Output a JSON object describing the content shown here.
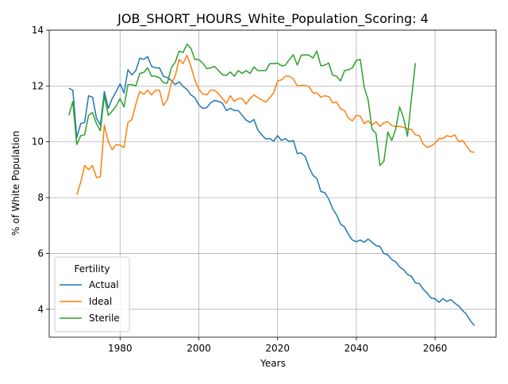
{
  "chart_data": {
    "type": "line",
    "title": "JOB_SHORT_HOURS_White_Population_Scoring: 4",
    "xlabel": "Years",
    "ylabel": "% of White Population",
    "xlim": [
      1962,
      2075.5
    ],
    "ylim": [
      3.0,
      14.0
    ],
    "xticks": [
      1980,
      2000,
      2020,
      2040,
      2060
    ],
    "yticks": [
      4,
      6,
      8,
      10,
      12,
      14
    ],
    "grid": true,
    "legend": {
      "title": "Fertility",
      "placement": "lower-left"
    },
    "x": [
      1967,
      1968,
      1969,
      1970,
      1971,
      1972,
      1973,
      1974,
      1975,
      1976,
      1977,
      1978,
      1979,
      1980,
      1981,
      1982,
      1983,
      1984,
      1985,
      1986,
      1987,
      1988,
      1989,
      1990,
      1991,
      1992,
      1993,
      1994,
      1995,
      1996,
      1997,
      1998,
      1999,
      2000,
      2001,
      2002,
      2003,
      2004,
      2005,
      2006,
      2007,
      2008,
      2009,
      2010,
      2011,
      2012,
      2013,
      2014,
      2015,
      2016,
      2017,
      2018,
      2019,
      2020,
      2021,
      2022,
      2023,
      2024,
      2025,
      2026,
      2027,
      2028,
      2029,
      2030,
      2031,
      2032,
      2033,
      2034,
      2035,
      2036,
      2037,
      2038,
      2039,
      2040,
      2041,
      2042,
      2043,
      2044,
      2045,
      2046,
      2047,
      2048,
      2049,
      2050,
      2051,
      2052,
      2053,
      2054,
      2055,
      2056,
      2057,
      2058,
      2059,
      2060,
      2061,
      2062,
      2063,
      2064,
      2065,
      2066,
      2067,
      2068,
      2069,
      2070
    ],
    "series": [
      {
        "name": "Actual",
        "color": "#1f77b4",
        "values": [
          11.92,
          11.85,
          10.15,
          10.65,
          10.7,
          11.65,
          11.6,
          10.85,
          10.6,
          11.8,
          11.2,
          11.55,
          11.8,
          12.08,
          11.75,
          12.58,
          12.4,
          12.55,
          13.0,
          12.95,
          13.05,
          12.7,
          12.65,
          12.65,
          12.35,
          12.3,
          12.2,
          12.05,
          12.15,
          11.98,
          11.88,
          11.68,
          11.58,
          11.32,
          11.2,
          11.22,
          11.4,
          11.48,
          11.45,
          11.38,
          11.12,
          11.2,
          11.12,
          11.12,
          10.95,
          10.78,
          10.7,
          10.8,
          10.42,
          10.25,
          10.1,
          10.12,
          10.02,
          10.22,
          10.05,
          10.12,
          10.0,
          10.05,
          9.58,
          9.6,
          9.48,
          9.08,
          8.8,
          8.68,
          8.22,
          8.18,
          7.95,
          7.6,
          7.38,
          7.05,
          6.95,
          6.68,
          6.48,
          6.42,
          6.48,
          6.4,
          6.52,
          6.4,
          6.28,
          6.25,
          6.0,
          5.95,
          5.78,
          5.7,
          5.52,
          5.42,
          5.25,
          5.18,
          4.95,
          4.92,
          4.72,
          4.58,
          4.4,
          4.38,
          4.25,
          4.38,
          4.28,
          4.35,
          4.22,
          4.12,
          3.95,
          3.82,
          3.58,
          3.42
        ]
      },
      {
        "name": "Ideal",
        "color": "#ff7f0e",
        "values": [
          null,
          null,
          8.1,
          8.55,
          9.15,
          9.0,
          9.15,
          8.72,
          8.75,
          10.6,
          10.0,
          9.72,
          9.9,
          9.88,
          9.8,
          10.7,
          10.8,
          11.35,
          11.8,
          11.7,
          11.85,
          11.68,
          11.85,
          11.85,
          11.3,
          11.5,
          12.1,
          12.35,
          12.95,
          12.8,
          13.1,
          12.7,
          12.2,
          11.88,
          11.72,
          11.68,
          11.85,
          11.85,
          11.72,
          11.55,
          11.38,
          11.65,
          11.45,
          11.55,
          11.55,
          11.35,
          11.55,
          11.68,
          11.58,
          11.5,
          11.42,
          11.58,
          11.75,
          12.18,
          12.22,
          12.35,
          12.35,
          12.25,
          12.0,
          12.02,
          12.02,
          11.98,
          11.75,
          11.75,
          11.6,
          11.65,
          11.62,
          11.4,
          11.42,
          11.18,
          11.12,
          10.85,
          10.75,
          10.95,
          10.92,
          10.65,
          10.75,
          10.6,
          10.72,
          10.55,
          10.68,
          10.72,
          10.58,
          10.55,
          10.55,
          10.52,
          10.45,
          10.45,
          10.25,
          10.22,
          9.92,
          9.8,
          9.85,
          9.95,
          10.12,
          10.12,
          10.22,
          10.18,
          10.25,
          10.0,
          10.05,
          9.85,
          9.65,
          9.62
        ]
      },
      {
        "name": "Sterile",
        "color": "#2ca02c",
        "values": [
          10.95,
          11.45,
          9.9,
          10.22,
          10.25,
          10.95,
          11.05,
          10.65,
          10.4,
          11.65,
          10.95,
          11.1,
          11.28,
          11.55,
          11.25,
          12.05,
          12.05,
          12.0,
          12.45,
          12.48,
          12.65,
          12.35,
          12.35,
          12.3,
          12.12,
          12.1,
          12.65,
          12.85,
          13.25,
          13.2,
          13.5,
          13.35,
          12.95,
          12.95,
          12.82,
          12.62,
          12.65,
          12.7,
          12.55,
          12.4,
          12.38,
          12.5,
          12.35,
          12.55,
          12.45,
          12.55,
          12.45,
          12.68,
          12.55,
          12.55,
          12.55,
          12.8,
          12.8,
          12.82,
          12.72,
          12.75,
          12.95,
          13.12,
          12.75,
          13.1,
          13.12,
          13.1,
          13.0,
          13.25,
          12.72,
          12.75,
          12.82,
          12.38,
          12.35,
          12.18,
          12.55,
          12.58,
          12.65,
          12.92,
          12.95,
          11.95,
          11.5,
          10.45,
          10.3,
          9.15,
          9.3,
          10.35,
          10.05,
          10.45,
          11.25,
          10.85,
          10.2,
          11.55,
          12.82,
          null,
          null,
          null,
          null,
          null,
          null,
          null,
          null,
          null,
          null,
          null,
          null,
          null,
          null,
          null
        ]
      }
    ]
  }
}
